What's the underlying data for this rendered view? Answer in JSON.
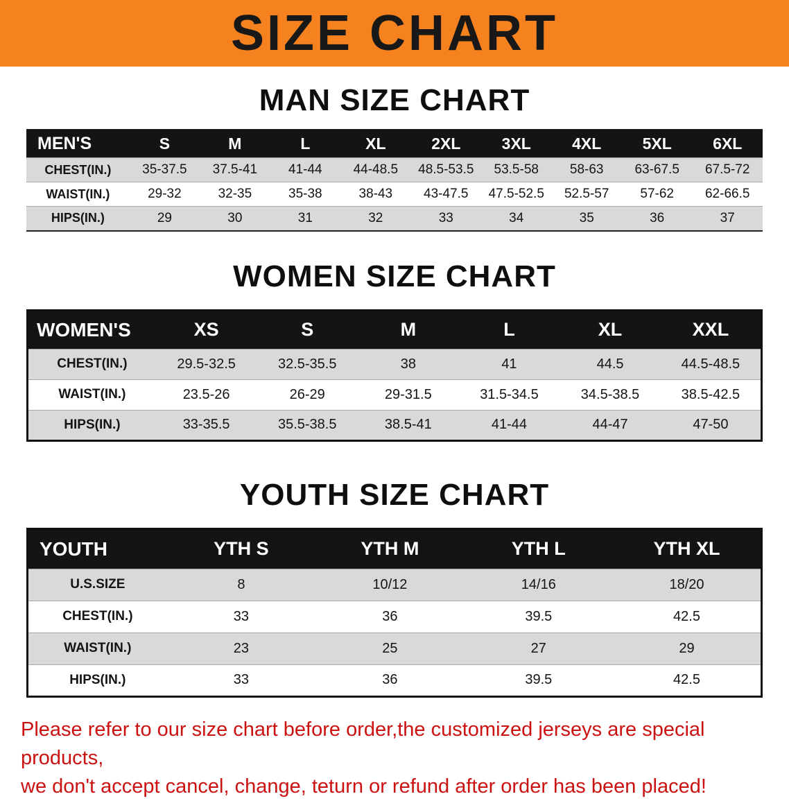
{
  "colors": {
    "banner_bg": "#f5821f",
    "banner_text": "#181818",
    "header_row_bg": "#141414",
    "header_row_text": "#ffffff",
    "row_alt_bg": "#d9d9d9",
    "notice_text": "#cc1111"
  },
  "banner": {
    "title": "SIZE CHART"
  },
  "men": {
    "section_title": "MAN SIZE CHART",
    "header": [
      "MEN'S",
      "S",
      "M",
      "L",
      "XL",
      "2XL",
      "3XL",
      "4XL",
      "5XL",
      "6XL"
    ],
    "rows": [
      [
        "CHEST(IN.)",
        "35-37.5",
        "37.5-41",
        "41-44",
        "44-48.5",
        "48.5-53.5",
        "53.5-58",
        "58-63",
        "63-67.5",
        "67.5-72"
      ],
      [
        "WAIST(IN.)",
        "29-32",
        "32-35",
        "35-38",
        "38-43",
        "43-47.5",
        "47.5-52.5",
        "52.5-57",
        "57-62",
        "62-66.5"
      ],
      [
        "HIPS(IN.)",
        "29",
        "30",
        "31",
        "32",
        "33",
        "34",
        "35",
        "36",
        "37"
      ]
    ]
  },
  "women": {
    "section_title": "WOMEN SIZE CHART",
    "header": [
      "WOMEN'S",
      "XS",
      "S",
      "M",
      "L",
      "XL",
      "XXL"
    ],
    "rows": [
      [
        "CHEST(IN.)",
        "29.5-32.5",
        "32.5-35.5",
        "38",
        "41",
        "44.5",
        "44.5-48.5"
      ],
      [
        "WAIST(IN.)",
        "23.5-26",
        "26-29",
        "29-31.5",
        "31.5-34.5",
        "34.5-38.5",
        "38.5-42.5"
      ],
      [
        "HIPS(IN.)",
        "33-35.5",
        "35.5-38.5",
        "38.5-41",
        "41-44",
        "44-47",
        "47-50"
      ]
    ]
  },
  "youth": {
    "section_title": "YOUTH SIZE CHART",
    "header": [
      "YOUTH",
      "YTH S",
      "YTH M",
      "YTH L",
      "YTH XL"
    ],
    "rows": [
      [
        "U.S.SIZE",
        "8",
        "10/12",
        "14/16",
        "18/20"
      ],
      [
        "CHEST(IN.)",
        "33",
        "36",
        "39.5",
        "42.5"
      ],
      [
        "WAIST(IN.)",
        "23",
        "25",
        "27",
        "29"
      ],
      [
        "HIPS(IN.)",
        "33",
        "36",
        "39.5",
        "42.5"
      ]
    ]
  },
  "footer": {
    "line1": "Please refer to our size chart before order,the customized jerseys are special products,",
    "line2": "we don't accept cancel, change, teturn or refund after order has been placed!"
  }
}
